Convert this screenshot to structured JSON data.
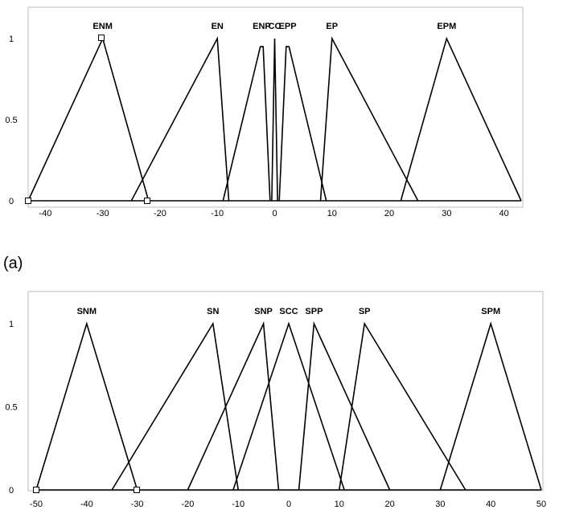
{
  "panel_labels": {
    "a": "(a)"
  },
  "chart_data": [
    {
      "type": "line",
      "title": "",
      "xlabel": "",
      "ylabel": "",
      "xlim": [
        -43,
        43
      ],
      "ylim": [
        0,
        1.1
      ],
      "x_ticks": [
        -40,
        -30,
        -20,
        -10,
        0,
        10,
        20,
        30,
        40
      ],
      "y_ticks": [
        0,
        0.5,
        1
      ],
      "y_tick_labels": [
        "0",
        "0.5",
        "1"
      ],
      "grid": false,
      "series": [
        {
          "name": "ENM",
          "x": [
            -43,
            -30,
            -22
          ],
          "y": [
            0,
            1,
            0
          ]
        },
        {
          "name": "EN",
          "x": [
            -25,
            -10,
            -8
          ],
          "y": [
            0,
            1,
            0
          ]
        },
        {
          "name": "ENP",
          "x": [
            -9,
            -2.5,
            -2,
            -0.8
          ],
          "y": [
            0,
            0.95,
            0.95,
            0
          ]
        },
        {
          "name": "CC",
          "x": [
            -0.5,
            0,
            0.5
          ],
          "y": [
            0,
            1,
            0
          ]
        },
        {
          "name": "EPP",
          "x": [
            0.8,
            2,
            2.5,
            9
          ],
          "y": [
            0,
            0.95,
            0.95,
            0
          ]
        },
        {
          "name": "EP",
          "x": [
            8,
            10,
            25
          ],
          "y": [
            0,
            1,
            0
          ]
        },
        {
          "name": "EPM",
          "x": [
            22,
            30,
            43
          ],
          "y": [
            0,
            1,
            0
          ]
        }
      ]
    },
    {
      "type": "line",
      "title": "",
      "xlabel": "",
      "ylabel": "",
      "xlim": [
        -50,
        50
      ],
      "ylim": [
        0,
        1.1
      ],
      "x_ticks": [
        -50,
        -40,
        -30,
        -20,
        -10,
        0,
        10,
        20,
        30,
        40,
        50
      ],
      "y_ticks": [
        0,
        0.5,
        1
      ],
      "y_tick_labels": [
        "0",
        "0.5",
        "1"
      ],
      "grid": false,
      "series": [
        {
          "name": "SNM",
          "x": [
            -50,
            -40,
            -30
          ],
          "y": [
            0,
            1,
            0
          ]
        },
        {
          "name": "SN",
          "x": [
            -35,
            -15,
            -10
          ],
          "y": [
            0,
            1,
            0
          ]
        },
        {
          "name": "SNP",
          "x": [
            -20,
            -5,
            -2
          ],
          "y": [
            0,
            1,
            0
          ]
        },
        {
          "name": "SCC",
          "x": [
            -11,
            0,
            11
          ],
          "y": [
            0,
            1,
            0
          ]
        },
        {
          "name": "SPP",
          "x": [
            2,
            5,
            20
          ],
          "y": [
            0,
            1,
            0
          ]
        },
        {
          "name": "SP",
          "x": [
            10,
            15,
            35
          ],
          "y": [
            0,
            1,
            0
          ]
        },
        {
          "name": "SPM",
          "x": [
            30,
            40,
            50
          ],
          "y": [
            0,
            1,
            0
          ]
        }
      ]
    }
  ]
}
